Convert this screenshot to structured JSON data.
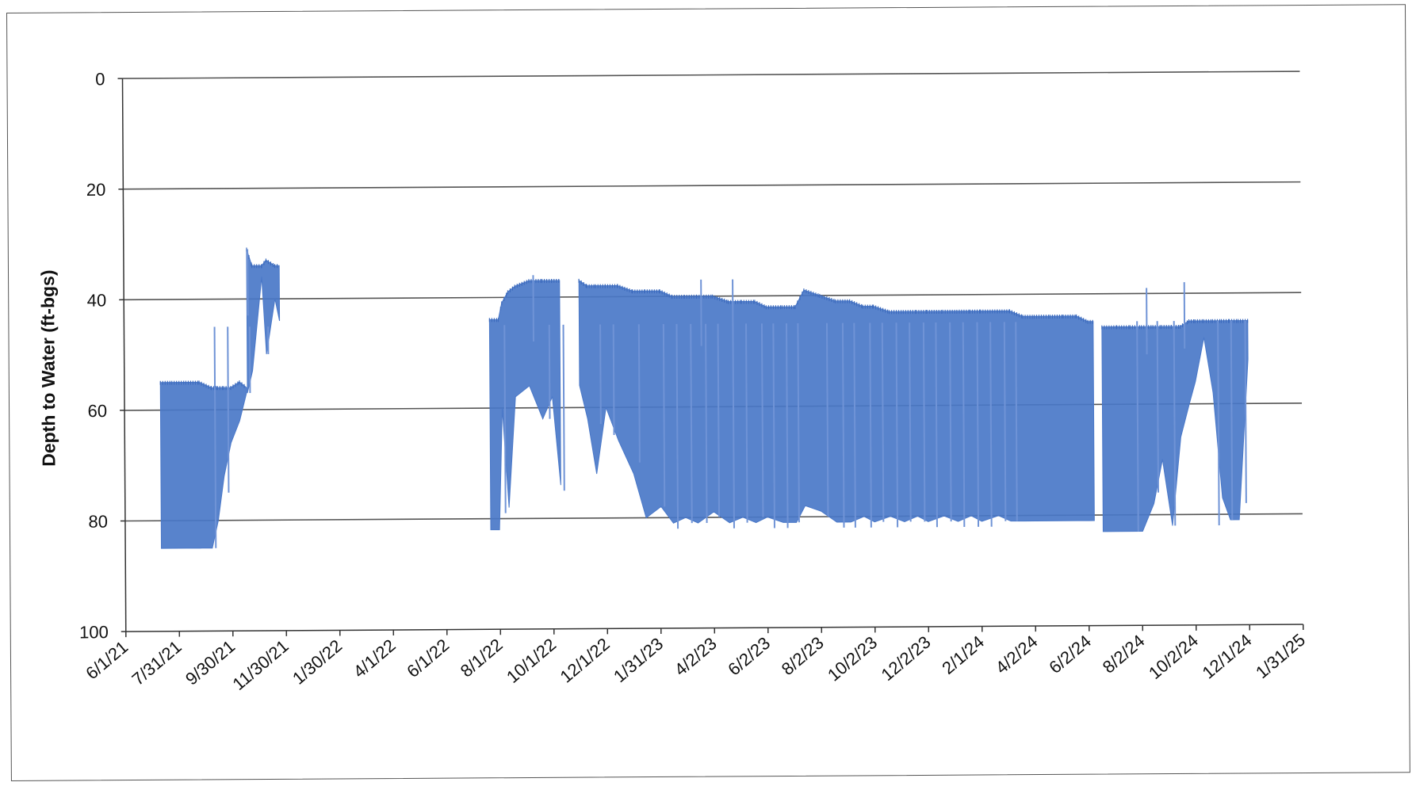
{
  "chart_data": {
    "type": "area",
    "title": "",
    "xlabel": "",
    "ylabel": "Depth to Water (ft-bgs)",
    "y_inverted": true,
    "ylim": [
      0,
      100
    ],
    "y_ticks": [
      0,
      20,
      40,
      60,
      80,
      100
    ],
    "x_range": [
      "2021-06-01",
      "2025-01-31"
    ],
    "x_tick_labels": [
      "6/1/21",
      "7/31/21",
      "9/30/21",
      "11/30/21",
      "1/30/22",
      "4/1/22",
      "6/1/22",
      "8/1/22",
      "10/1/22",
      "12/1/22",
      "1/31/23",
      "4/2/23",
      "6/2/23",
      "8/2/23",
      "10/2/23",
      "12/2/23",
      "2/1/24",
      "4/2/24",
      "6/2/24",
      "8/2/24",
      "10/2/24",
      "12/1/24",
      "1/31/25"
    ],
    "grid": "horizontal",
    "legend": "none",
    "series_color": "#4a78c8",
    "series": [
      {
        "note_columns": [
          "date",
          "shallowest_depth",
          "deepest_depth"
        ],
        "segments": [
          [
            [
              "2021-07-12",
              55,
              85
            ],
            [
              "2021-07-25",
              55,
              85
            ],
            [
              "2021-08-10",
              55,
              85
            ],
            [
              "2021-08-25",
              55,
              85
            ],
            [
              "2021-09-08",
              56,
              85
            ],
            [
              "2021-09-15",
              56,
              80
            ],
            [
              "2021-09-22",
              56,
              72
            ],
            [
              "2021-09-30",
              56,
              66
            ],
            [
              "2021-10-10",
              55,
              62
            ],
            [
              "2021-10-18",
              56,
              57
            ]
          ],
          [
            [
              "2021-10-19",
              31,
              57
            ],
            [
              "2021-10-25",
              34,
              53
            ],
            [
              "2021-11-05",
              34,
              36
            ],
            [
              "2021-11-10",
              33,
              50
            ],
            [
              "2021-11-20",
              34,
              40
            ],
            [
              "2021-11-25",
              34,
              44
            ]
          ],
          [
            [
              "2022-07-22",
              44,
              82
            ],
            [
              "2022-08-01",
              44,
              82
            ],
            [
              "2022-08-05",
              41,
              60
            ],
            [
              "2022-08-12",
              39,
              78
            ],
            [
              "2022-08-20",
              38,
              58
            ],
            [
              "2022-09-05",
              37,
              56
            ],
            [
              "2022-09-20",
              37,
              62
            ],
            [
              "2022-10-01",
              37,
              58
            ],
            [
              "2022-10-10",
              37,
              74
            ]
          ],
          [
            [
              "2022-11-01",
              37,
              56
            ],
            [
              "2022-11-10",
              38,
              62
            ],
            [
              "2022-11-20",
              38,
              72
            ],
            [
              "2022-12-01",
              38,
              60
            ],
            [
              "2022-12-15",
              38,
              66
            ],
            [
              "2023-01-01",
              39,
              72
            ],
            [
              "2023-01-15",
              39,
              80
            ],
            [
              "2023-02-01",
              39,
              78
            ],
            [
              "2023-02-15",
              40,
              81
            ],
            [
              "2023-03-01",
              40,
              80
            ],
            [
              "2023-03-15",
              40,
              81
            ],
            [
              "2023-04-02",
              40,
              79
            ],
            [
              "2023-04-20",
              41,
              81
            ],
            [
              "2023-05-05",
              41,
              80
            ],
            [
              "2023-05-20",
              41,
              81
            ],
            [
              "2023-06-02",
              42,
              80
            ],
            [
              "2023-06-20",
              42,
              81
            ],
            [
              "2023-07-05",
              42,
              81
            ],
            [
              "2023-07-15",
              39,
              78
            ],
            [
              "2023-08-02",
              40,
              79
            ],
            [
              "2023-08-20",
              41,
              81
            ],
            [
              "2023-09-05",
              41,
              81
            ],
            [
              "2023-09-20",
              42,
              80
            ],
            [
              "2023-10-02",
              42,
              81
            ],
            [
              "2023-10-20",
              43,
              80
            ],
            [
              "2023-11-05",
              43,
              81
            ],
            [
              "2023-11-20",
              43,
              80
            ],
            [
              "2023-12-02",
              43,
              81
            ],
            [
              "2023-12-20",
              43,
              80
            ],
            [
              "2024-01-05",
              43,
              81
            ],
            [
              "2024-01-20",
              43,
              80
            ],
            [
              "2024-02-01",
              43,
              81
            ],
            [
              "2024-02-20",
              43,
              80
            ],
            [
              "2024-03-05",
              43,
              81
            ],
            [
              "2024-03-20",
              44,
              81
            ],
            [
              "2024-04-02",
              44,
              81
            ],
            [
              "2024-04-20",
              44,
              81
            ],
            [
              "2024-05-05",
              44,
              81
            ],
            [
              "2024-05-20",
              44,
              81
            ],
            [
              "2024-06-02",
              45,
              81
            ],
            [
              "2024-06-08",
              45,
              81
            ]
          ],
          [
            [
              "2024-06-18",
              46,
              83
            ],
            [
              "2024-07-05",
              46,
              83
            ],
            [
              "2024-07-20",
              46,
              83
            ],
            [
              "2024-08-02",
              46,
              83
            ],
            [
              "2024-08-15",
              46,
              78
            ],
            [
              "2024-08-25",
              46,
              70
            ],
            [
              "2024-09-05",
              46,
              82
            ],
            [
              "2024-09-15",
              46,
              66
            ],
            [
              "2024-09-25",
              45,
              60
            ],
            [
              "2024-10-02",
              45,
              56
            ],
            [
              "2024-10-12",
              45,
              48
            ],
            [
              "2024-10-22",
              45,
              58
            ],
            [
              "2024-11-01",
              45,
              77
            ],
            [
              "2024-11-10",
              45,
              81
            ],
            [
              "2024-11-20",
              45,
              81
            ],
            [
              "2024-12-01",
              45,
              52
            ]
          ]
        ],
        "spikes": [
          [
            "2021-10-22",
            57
          ],
          [
            "2021-09-27",
            75
          ],
          [
            "2021-09-12",
            85
          ],
          [
            "2021-11-12",
            50
          ],
          [
            "2022-08-08",
            79
          ],
          [
            "2022-09-28",
            62
          ],
          [
            "2022-10-14",
            75
          ],
          [
            "2022-11-25",
            63
          ],
          [
            "2022-12-10",
            65
          ],
          [
            "2023-01-08",
            70
          ],
          [
            "2023-02-05",
            78
          ],
          [
            "2023-02-20",
            82
          ],
          [
            "2023-03-08",
            81
          ],
          [
            "2023-03-25",
            81
          ],
          [
            "2023-04-08",
            80
          ],
          [
            "2023-04-25",
            82
          ],
          [
            "2023-05-10",
            81
          ],
          [
            "2023-05-28",
            80
          ],
          [
            "2023-06-10",
            82
          ],
          [
            "2023-06-25",
            82
          ],
          [
            "2023-07-08",
            81
          ],
          [
            "2023-08-10",
            80
          ],
          [
            "2023-08-28",
            82
          ],
          [
            "2023-09-10",
            82
          ],
          [
            "2023-09-28",
            82
          ],
          [
            "2023-10-12",
            81
          ],
          [
            "2023-10-28",
            82
          ],
          [
            "2023-11-12",
            81
          ],
          [
            "2023-11-28",
            81
          ],
          [
            "2023-12-12",
            82
          ],
          [
            "2023-12-28",
            81
          ],
          [
            "2024-01-12",
            82
          ],
          [
            "2024-01-28",
            82
          ],
          [
            "2024-02-12",
            82
          ],
          [
            "2024-02-28",
            81
          ],
          [
            "2024-03-12",
            81
          ],
          [
            "2024-07-28",
            83
          ],
          [
            "2024-08-20",
            76
          ],
          [
            "2024-09-08",
            82
          ],
          [
            "2024-10-28",
            82
          ],
          [
            "2024-11-12",
            81
          ],
          [
            "2024-11-28",
            78
          ]
        ],
        "upward_spikes": [
          [
            "2021-10-20",
            31
          ],
          [
            "2022-09-10",
            36
          ],
          [
            "2023-03-20",
            37
          ],
          [
            "2023-04-25",
            37
          ],
          [
            "2024-08-08",
            39
          ],
          [
            "2024-09-20",
            38
          ]
        ]
      }
    ]
  }
}
